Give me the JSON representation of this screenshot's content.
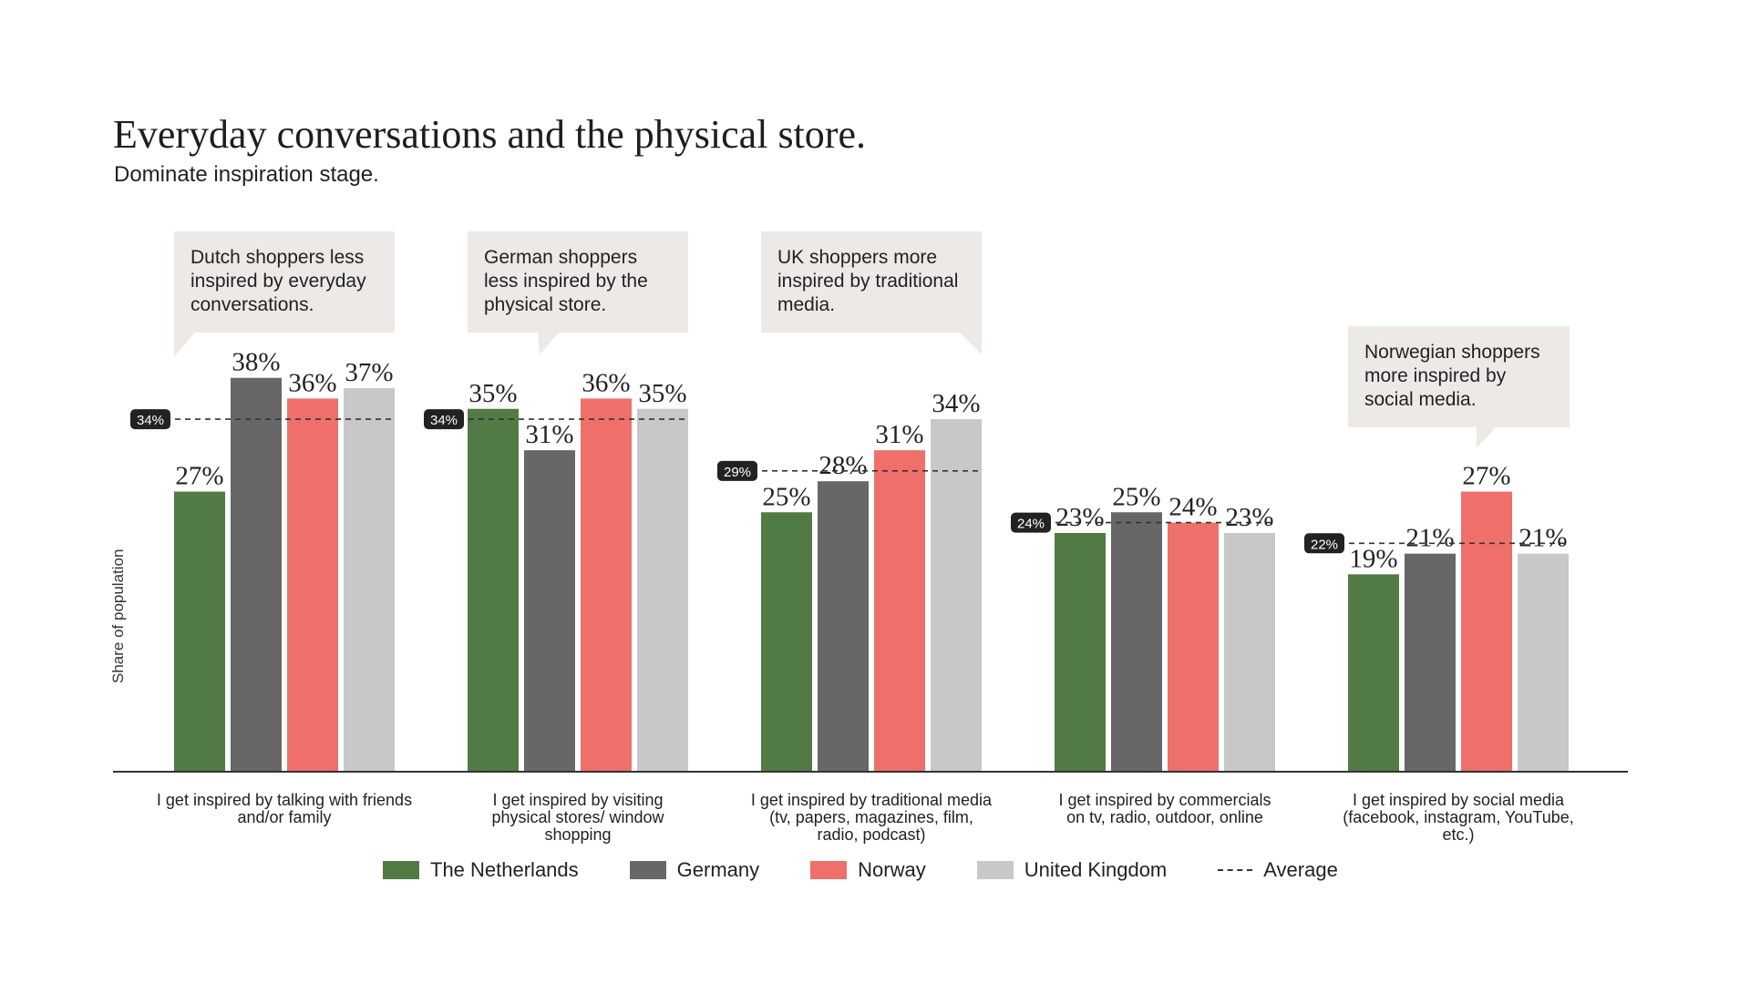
{
  "title": "Everyday conversations and the physical store.",
  "subtitle": "Dominate inspiration stage.",
  "callouts": [
    "Dutch shoppers less inspired by everyday conversations.",
    "German shoppers less inspired by the physical store.",
    "UK shoppers more inspired by traditional media.",
    "Norwegian shoppers more inspired by social media."
  ],
  "legend": {
    "average": "Average"
  },
  "chart_data": {
    "type": "bar",
    "ylabel": "Share of population",
    "ylim": [
      0,
      45
    ],
    "grid": false,
    "legend_placement": "bottom",
    "categories": [
      "I get inspired by talking with friends and/or family",
      "I get inspired by visiting physical stores/ window shopping",
      "I get inspired by traditional media (tv, papers, magazines, film, radio, podcast)",
      "I get inspired by commercials on tv, radio, outdoor, online",
      "I get inspired by social media (facebook, instagram, YouTube, etc.)"
    ],
    "series": [
      {
        "name": "The Netherlands",
        "color": "#527a44",
        "values": [
          27,
          35,
          25,
          23,
          19
        ]
      },
      {
        "name": "Germany",
        "color": "#676767",
        "values": [
          38,
          31,
          28,
          25,
          21
        ]
      },
      {
        "name": "Norway",
        "color": "#ef706a",
        "values": [
          36,
          36,
          31,
          24,
          27
        ]
      },
      {
        "name": "United Kingdom",
        "color": "#c8c8c8",
        "values": [
          37,
          35,
          34,
          23,
          21
        ]
      }
    ],
    "average": [
      34,
      34,
      29,
      24,
      22
    ],
    "value_suffix": "%"
  }
}
